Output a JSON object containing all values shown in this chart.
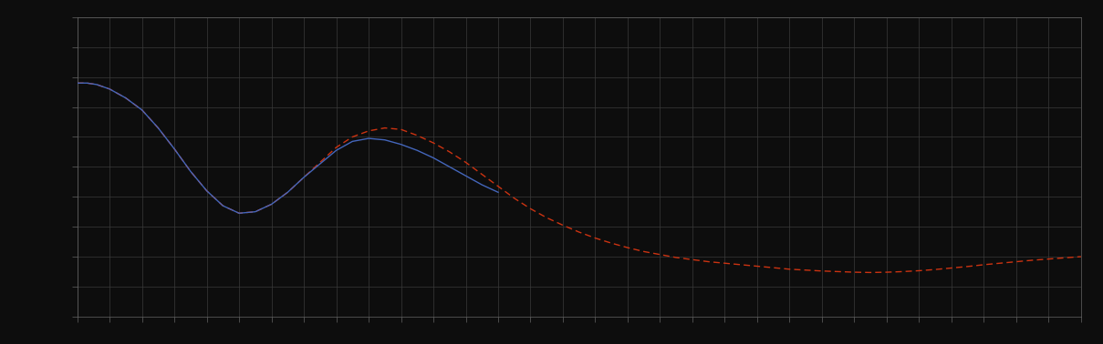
{
  "background_color": "#0d0d0d",
  "plot_bg_color": "#0d0d0d",
  "grid_color": "#3a3a3a",
  "line1_color": "#4466bb",
  "line2_color": "#cc3311",
  "line_width": 1.0,
  "figsize": [
    12.09,
    3.78
  ],
  "dpi": 100,
  "xlim": [
    0,
    31
  ],
  "ylim": [
    0,
    10
  ],
  "n_gridlines_x": 31,
  "n_gridlines_y": 10,
  "x_blue": [
    0,
    0.3,
    0.6,
    1.0,
    1.5,
    2.0,
    2.5,
    3.0,
    3.5,
    4.0,
    4.5,
    5.0,
    5.5,
    6.0,
    6.5,
    7.0,
    7.5,
    8.0,
    8.5,
    9.0,
    9.5,
    10.0,
    10.5,
    11.0,
    11.5,
    12.0,
    12.5,
    13.0
  ],
  "y_blue": [
    7.8,
    7.8,
    7.75,
    7.6,
    7.3,
    6.9,
    6.3,
    5.6,
    4.85,
    4.2,
    3.7,
    3.45,
    3.5,
    3.75,
    4.15,
    4.65,
    5.1,
    5.55,
    5.85,
    5.95,
    5.9,
    5.75,
    5.55,
    5.3,
    5.0,
    4.7,
    4.4,
    4.15
  ],
  "x_red": [
    0,
    0.3,
    0.6,
    1.0,
    1.5,
    2.0,
    2.5,
    3.0,
    3.5,
    4.0,
    4.5,
    5.0,
    5.5,
    6.0,
    6.5,
    7.0,
    7.5,
    8.0,
    8.5,
    9.0,
    9.5,
    10.0,
    10.5,
    11.0,
    11.5,
    12.0,
    12.5,
    13.0,
    13.5,
    14.0,
    14.5,
    15.0,
    15.5,
    16.0,
    16.5,
    17.0,
    17.5,
    18.0,
    18.5,
    19.0,
    19.5,
    20.0,
    20.5,
    21.0,
    21.5,
    22.0,
    22.5,
    23.0,
    23.5,
    24.0,
    24.5,
    25.0,
    25.5,
    26.0,
    26.5,
    27.0,
    27.5,
    28.0,
    28.5,
    29.0,
    29.5,
    30.0,
    30.5,
    31.0
  ],
  "y_red": [
    7.8,
    7.8,
    7.75,
    7.6,
    7.3,
    6.9,
    6.3,
    5.6,
    4.85,
    4.2,
    3.7,
    3.45,
    3.5,
    3.75,
    4.15,
    4.65,
    5.15,
    5.65,
    6.0,
    6.2,
    6.3,
    6.25,
    6.05,
    5.8,
    5.5,
    5.15,
    4.75,
    4.35,
    3.95,
    3.6,
    3.3,
    3.05,
    2.82,
    2.62,
    2.45,
    2.3,
    2.17,
    2.07,
    1.97,
    1.9,
    1.83,
    1.78,
    1.73,
    1.68,
    1.63,
    1.58,
    1.55,
    1.52,
    1.5,
    1.48,
    1.47,
    1.48,
    1.5,
    1.53,
    1.57,
    1.62,
    1.67,
    1.73,
    1.78,
    1.83,
    1.88,
    1.92,
    1.96,
    2.0
  ]
}
